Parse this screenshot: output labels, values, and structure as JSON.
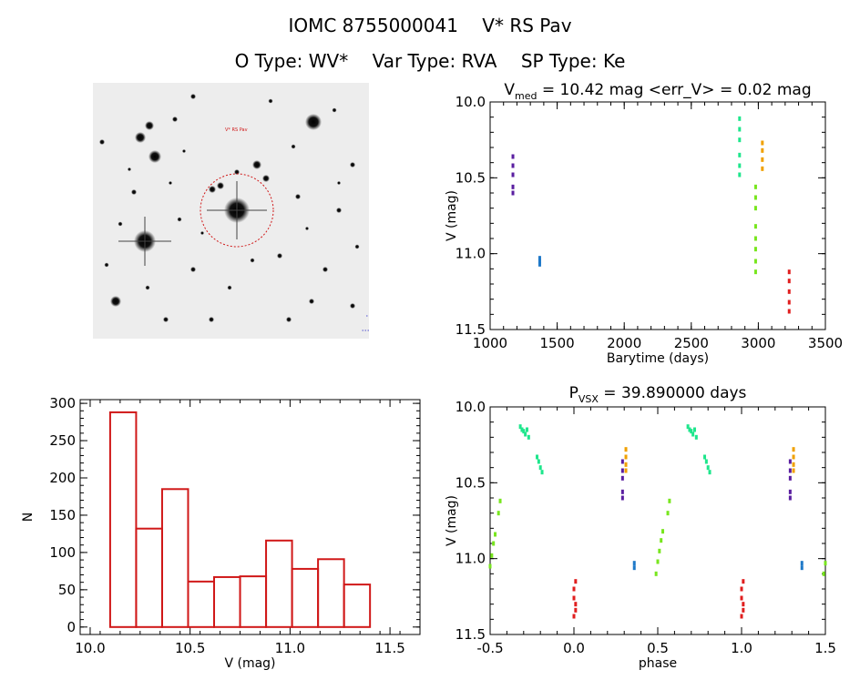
{
  "header": {
    "catalog_id": "IOMC 8755000041",
    "star_name": "V* RS Pav",
    "o_type": "O Type: WV*",
    "var_type": "Var Type: RVA",
    "sp_type": "SP Type: Ke"
  },
  "image_panel": {
    "label_star": "V* RS Pav",
    "label_bl": "",
    "label_bc": "",
    "label_tl": ""
  },
  "colors": {
    "purple": "#5a1ea0",
    "blue": "#1e78c8",
    "teal": "#1ee68c",
    "orange": "#f0a000",
    "lime": "#78e61e",
    "red": "#e01e1e",
    "hist": "#d01818"
  },
  "chart_data": [
    {
      "type": "scatter",
      "title": "V_med = 10.42 mag <err_V> = 0.02 mag",
      "title_parts": {
        "v": "V",
        "sub": "med",
        "rest": " = 10.42 mag <err_V> = 0.02 mag"
      },
      "xlabel": "Barytime (days)",
      "ylabel": "V (mag)",
      "xlim": [
        1000,
        3500
      ],
      "ylim": [
        11.5,
        10.0
      ],
      "xticks": [
        "1000",
        "1500",
        "2000",
        "2500",
        "3000",
        "3500"
      ],
      "yticks": [
        "10.0",
        "10.5",
        "11.0",
        "11.5"
      ],
      "series": [
        {
          "color": "purple",
          "points": [
            [
              1170,
              10.36
            ],
            [
              1170,
              10.42
            ],
            [
              1170,
              10.48
            ],
            [
              1170,
              10.56
            ],
            [
              1170,
              10.6
            ]
          ]
        },
        {
          "color": "blue",
          "points": [
            [
              1370,
              11.03
            ],
            [
              1370,
              11.05
            ],
            [
              1370,
              11.07
            ]
          ]
        },
        {
          "color": "teal",
          "points": [
            [
              2860,
              10.11
            ],
            [
              2860,
              10.18
            ],
            [
              2860,
              10.25
            ],
            [
              2860,
              10.35
            ],
            [
              2860,
              10.42
            ],
            [
              2860,
              10.48
            ]
          ]
        },
        {
          "color": "orange",
          "points": [
            [
              3030,
              10.27
            ],
            [
              3030,
              10.32
            ],
            [
              3030,
              10.38
            ],
            [
              3030,
              10.44
            ]
          ]
        },
        {
          "color": "lime",
          "points": [
            [
              2980,
              10.56
            ],
            [
              2980,
              10.63
            ],
            [
              2980,
              10.7
            ],
            [
              2980,
              10.82
            ],
            [
              2980,
              10.9
            ],
            [
              2980,
              10.97
            ],
            [
              2980,
              11.05
            ],
            [
              2980,
              11.12
            ]
          ]
        },
        {
          "color": "red",
          "points": [
            [
              3230,
              11.12
            ],
            [
              3230,
              11.18
            ],
            [
              3230,
              11.25
            ],
            [
              3230,
              11.32
            ],
            [
              3230,
              11.38
            ]
          ]
        }
      ]
    },
    {
      "type": "bar",
      "title": "",
      "xlabel": "V (mag)",
      "ylabel": "N",
      "xlim": [
        9.95,
        11.65
      ],
      "ylim": [
        -10,
        305
      ],
      "xticks": [
        "10.0",
        "10.5",
        "11.0",
        "11.5"
      ],
      "yticks": [
        "0",
        "50",
        "100",
        "150",
        "200",
        "250",
        "300"
      ],
      "bin_edges": [
        10.1,
        10.23,
        10.36,
        10.49,
        10.62,
        10.75,
        10.88,
        11.01,
        11.14,
        11.27,
        11.4
      ],
      "values": [
        288,
        132,
        185,
        61,
        67,
        68,
        116,
        78,
        91,
        57
      ]
    },
    {
      "type": "scatter",
      "title": "P_vsx = 39.890000 days",
      "title_parts": {
        "p": "P",
        "sub": "VSX",
        "rest": " = 39.890000 days"
      },
      "xlabel": "phase",
      "ylabel": "V (mag)",
      "xlim": [
        -0.5,
        1.5
      ],
      "ylim": [
        11.5,
        10.0
      ],
      "xticks": [
        "-0.5",
        "0.0",
        "0.5",
        "1.0",
        "1.5"
      ],
      "yticks": [
        "10.0",
        "10.5",
        "11.0",
        "11.5"
      ],
      "series": [
        {
          "color": "teal",
          "points": [
            [
              -0.32,
              10.13
            ],
            [
              -0.31,
              10.15
            ],
            [
              -0.3,
              10.16
            ],
            [
              -0.29,
              10.18
            ],
            [
              -0.28,
              10.15
            ],
            [
              -0.27,
              10.2
            ],
            [
              -0.22,
              10.33
            ],
            [
              -0.21,
              10.36
            ],
            [
              -0.2,
              10.4
            ],
            [
              -0.19,
              10.43
            ]
          ]
        },
        {
          "color": "teal",
          "points": [
            [
              0.68,
              10.13
            ],
            [
              0.69,
              10.15
            ],
            [
              0.7,
              10.16
            ],
            [
              0.71,
              10.18
            ],
            [
              0.72,
              10.15
            ],
            [
              0.73,
              10.2
            ],
            [
              0.78,
              10.33
            ],
            [
              0.79,
              10.36
            ],
            [
              0.8,
              10.4
            ],
            [
              0.81,
              10.43
            ]
          ]
        },
        {
          "color": "purple",
          "points": [
            [
              0.29,
              10.36
            ],
            [
              0.29,
              10.42
            ],
            [
              0.29,
              10.47
            ],
            [
              0.29,
              10.56
            ],
            [
              0.29,
              10.6
            ]
          ]
        },
        {
          "color": "purple",
          "points": [
            [
              1.29,
              10.36
            ],
            [
              1.29,
              10.42
            ],
            [
              1.29,
              10.47
            ],
            [
              1.29,
              10.56
            ],
            [
              1.29,
              10.6
            ]
          ]
        },
        {
          "color": "orange",
          "points": [
            [
              0.31,
              10.28
            ],
            [
              0.31,
              10.33
            ],
            [
              0.31,
              10.38
            ],
            [
              0.31,
              10.42
            ]
          ]
        },
        {
          "color": "orange",
          "points": [
            [
              1.31,
              10.28
            ],
            [
              1.31,
              10.33
            ],
            [
              1.31,
              10.38
            ],
            [
              1.31,
              10.42
            ]
          ]
        },
        {
          "color": "blue",
          "points": [
            [
              0.36,
              11.03
            ],
            [
              0.36,
              11.06
            ]
          ]
        },
        {
          "color": "blue",
          "points": [
            [
              1.36,
              11.03
            ],
            [
              1.36,
              11.06
            ]
          ]
        },
        {
          "color": "lime",
          "points": [
            [
              -0.5,
              11.05
            ],
            [
              -0.49,
              10.98
            ],
            [
              -0.48,
              10.9
            ],
            [
              -0.47,
              10.84
            ],
            [
              -0.45,
              10.7
            ],
            [
              -0.44,
              10.62
            ],
            [
              0.49,
              11.1
            ],
            [
              0.5,
              11.02
            ],
            [
              0.51,
              10.95
            ],
            [
              0.52,
              10.88
            ],
            [
              0.53,
              10.82
            ],
            [
              0.56,
              10.7
            ],
            [
              0.57,
              10.62
            ],
            [
              1.49,
              11.1
            ],
            [
              1.5,
              11.03
            ]
          ]
        },
        {
          "color": "red",
          "points": [
            [
              0.0,
              11.2
            ],
            [
              0.0,
              11.26
            ],
            [
              0.01,
              11.3
            ],
            [
              0.01,
              11.34
            ],
            [
              0.01,
              11.15
            ],
            [
              0.0,
              11.38
            ],
            [
              1.0,
              11.2
            ],
            [
              1.0,
              11.26
            ],
            [
              1.01,
              11.3
            ],
            [
              1.01,
              11.34
            ],
            [
              1.01,
              11.15
            ],
            [
              1.0,
              11.38
            ]
          ]
        }
      ]
    }
  ]
}
